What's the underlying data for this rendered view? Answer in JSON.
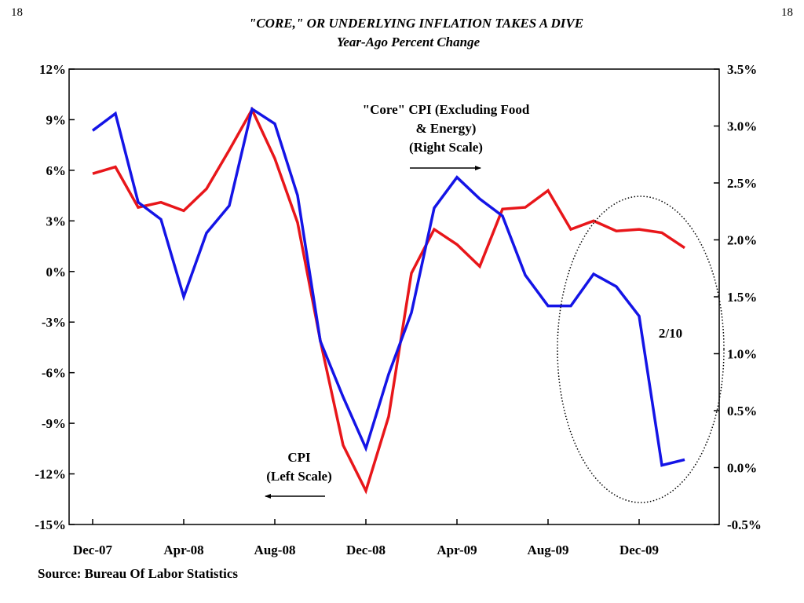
{
  "page_number_left": "18",
  "page_number_right": "18",
  "source": "Source: Bureau Of Labor Statistics",
  "colors": {
    "cpi": "#e8161a",
    "core": "#1414e6"
  },
  "chart_data": {
    "type": "line",
    "title": "\"CORE,\" OR UNDERLYING INFLATION TAKES A DIVE",
    "subtitle": "Year-Ago Percent Change",
    "x_ticks": [
      "Dec-07",
      "Apr-08",
      "Aug-08",
      "Dec-08",
      "Apr-09",
      "Aug-09",
      "Dec-09"
    ],
    "y_left": {
      "range": [
        -15,
        12
      ],
      "ticks": [
        12,
        9,
        6,
        3,
        0,
        -3,
        -6,
        -9,
        -12,
        -15
      ],
      "tick_labels": [
        "12%",
        "9%",
        "6%",
        "3%",
        "0%",
        "-3%",
        "-6%",
        "-9%",
        "-12%",
        "-15%"
      ]
    },
    "y_right": {
      "range": [
        -0.5,
        3.5
      ],
      "ticks": [
        3.5,
        3.0,
        2.5,
        2.0,
        1.5,
        1.0,
        0.5,
        0.0,
        -0.5
      ],
      "tick_labels": [
        "3.5%",
        "3.0%",
        "2.5%",
        "2.0%",
        "1.5%",
        "1.0%",
        "0.5%",
        "0.0%",
        "-0.5%"
      ]
    },
    "x": [
      "Dec-07",
      "Jan-08",
      "Feb-08",
      "Mar-08",
      "Apr-08",
      "May-08",
      "Jun-08",
      "Jul-08",
      "Aug-08",
      "Sep-08",
      "Oct-08",
      "Nov-08",
      "Dec-08",
      "Jan-09",
      "Feb-09",
      "Mar-09",
      "Apr-09",
      "May-09",
      "Jun-09",
      "Jul-09",
      "Aug-09",
      "Sep-09",
      "Oct-09",
      "Nov-09",
      "Dec-09",
      "Jan-10",
      "Feb-10"
    ],
    "series": [
      {
        "name": "CPI",
        "axis": "left",
        "values": [
          5.8,
          6.2,
          3.8,
          4.1,
          3.6,
          4.9,
          7.2,
          9.6,
          6.7,
          2.9,
          -4.1,
          -10.3,
          -13.0,
          -8.6,
          -0.1,
          2.5,
          1.6,
          0.3,
          3.7,
          3.8,
          4.8,
          2.5,
          3.0,
          2.4,
          2.5,
          2.3,
          1.4
        ]
      },
      {
        "name": "\"Core\" CPI (Excluding Food & Energy)",
        "axis": "right",
        "values": [
          2.96,
          3.11,
          2.33,
          2.18,
          1.5,
          2.06,
          2.3,
          3.15,
          3.02,
          2.39,
          1.11,
          0.62,
          0.17,
          0.82,
          1.36,
          2.28,
          2.55,
          2.36,
          2.21,
          1.69,
          1.42,
          1.42,
          1.7,
          1.59,
          1.33,
          0.02,
          0.07
        ]
      }
    ],
    "annotations": {
      "core_label": [
        "\"Core\" CPI (Excluding Food",
        "& Energy)",
        "(Right Scale)"
      ],
      "cpi_label": [
        "CPI",
        "(Left Scale)"
      ],
      "circle_label": "2/10"
    }
  }
}
